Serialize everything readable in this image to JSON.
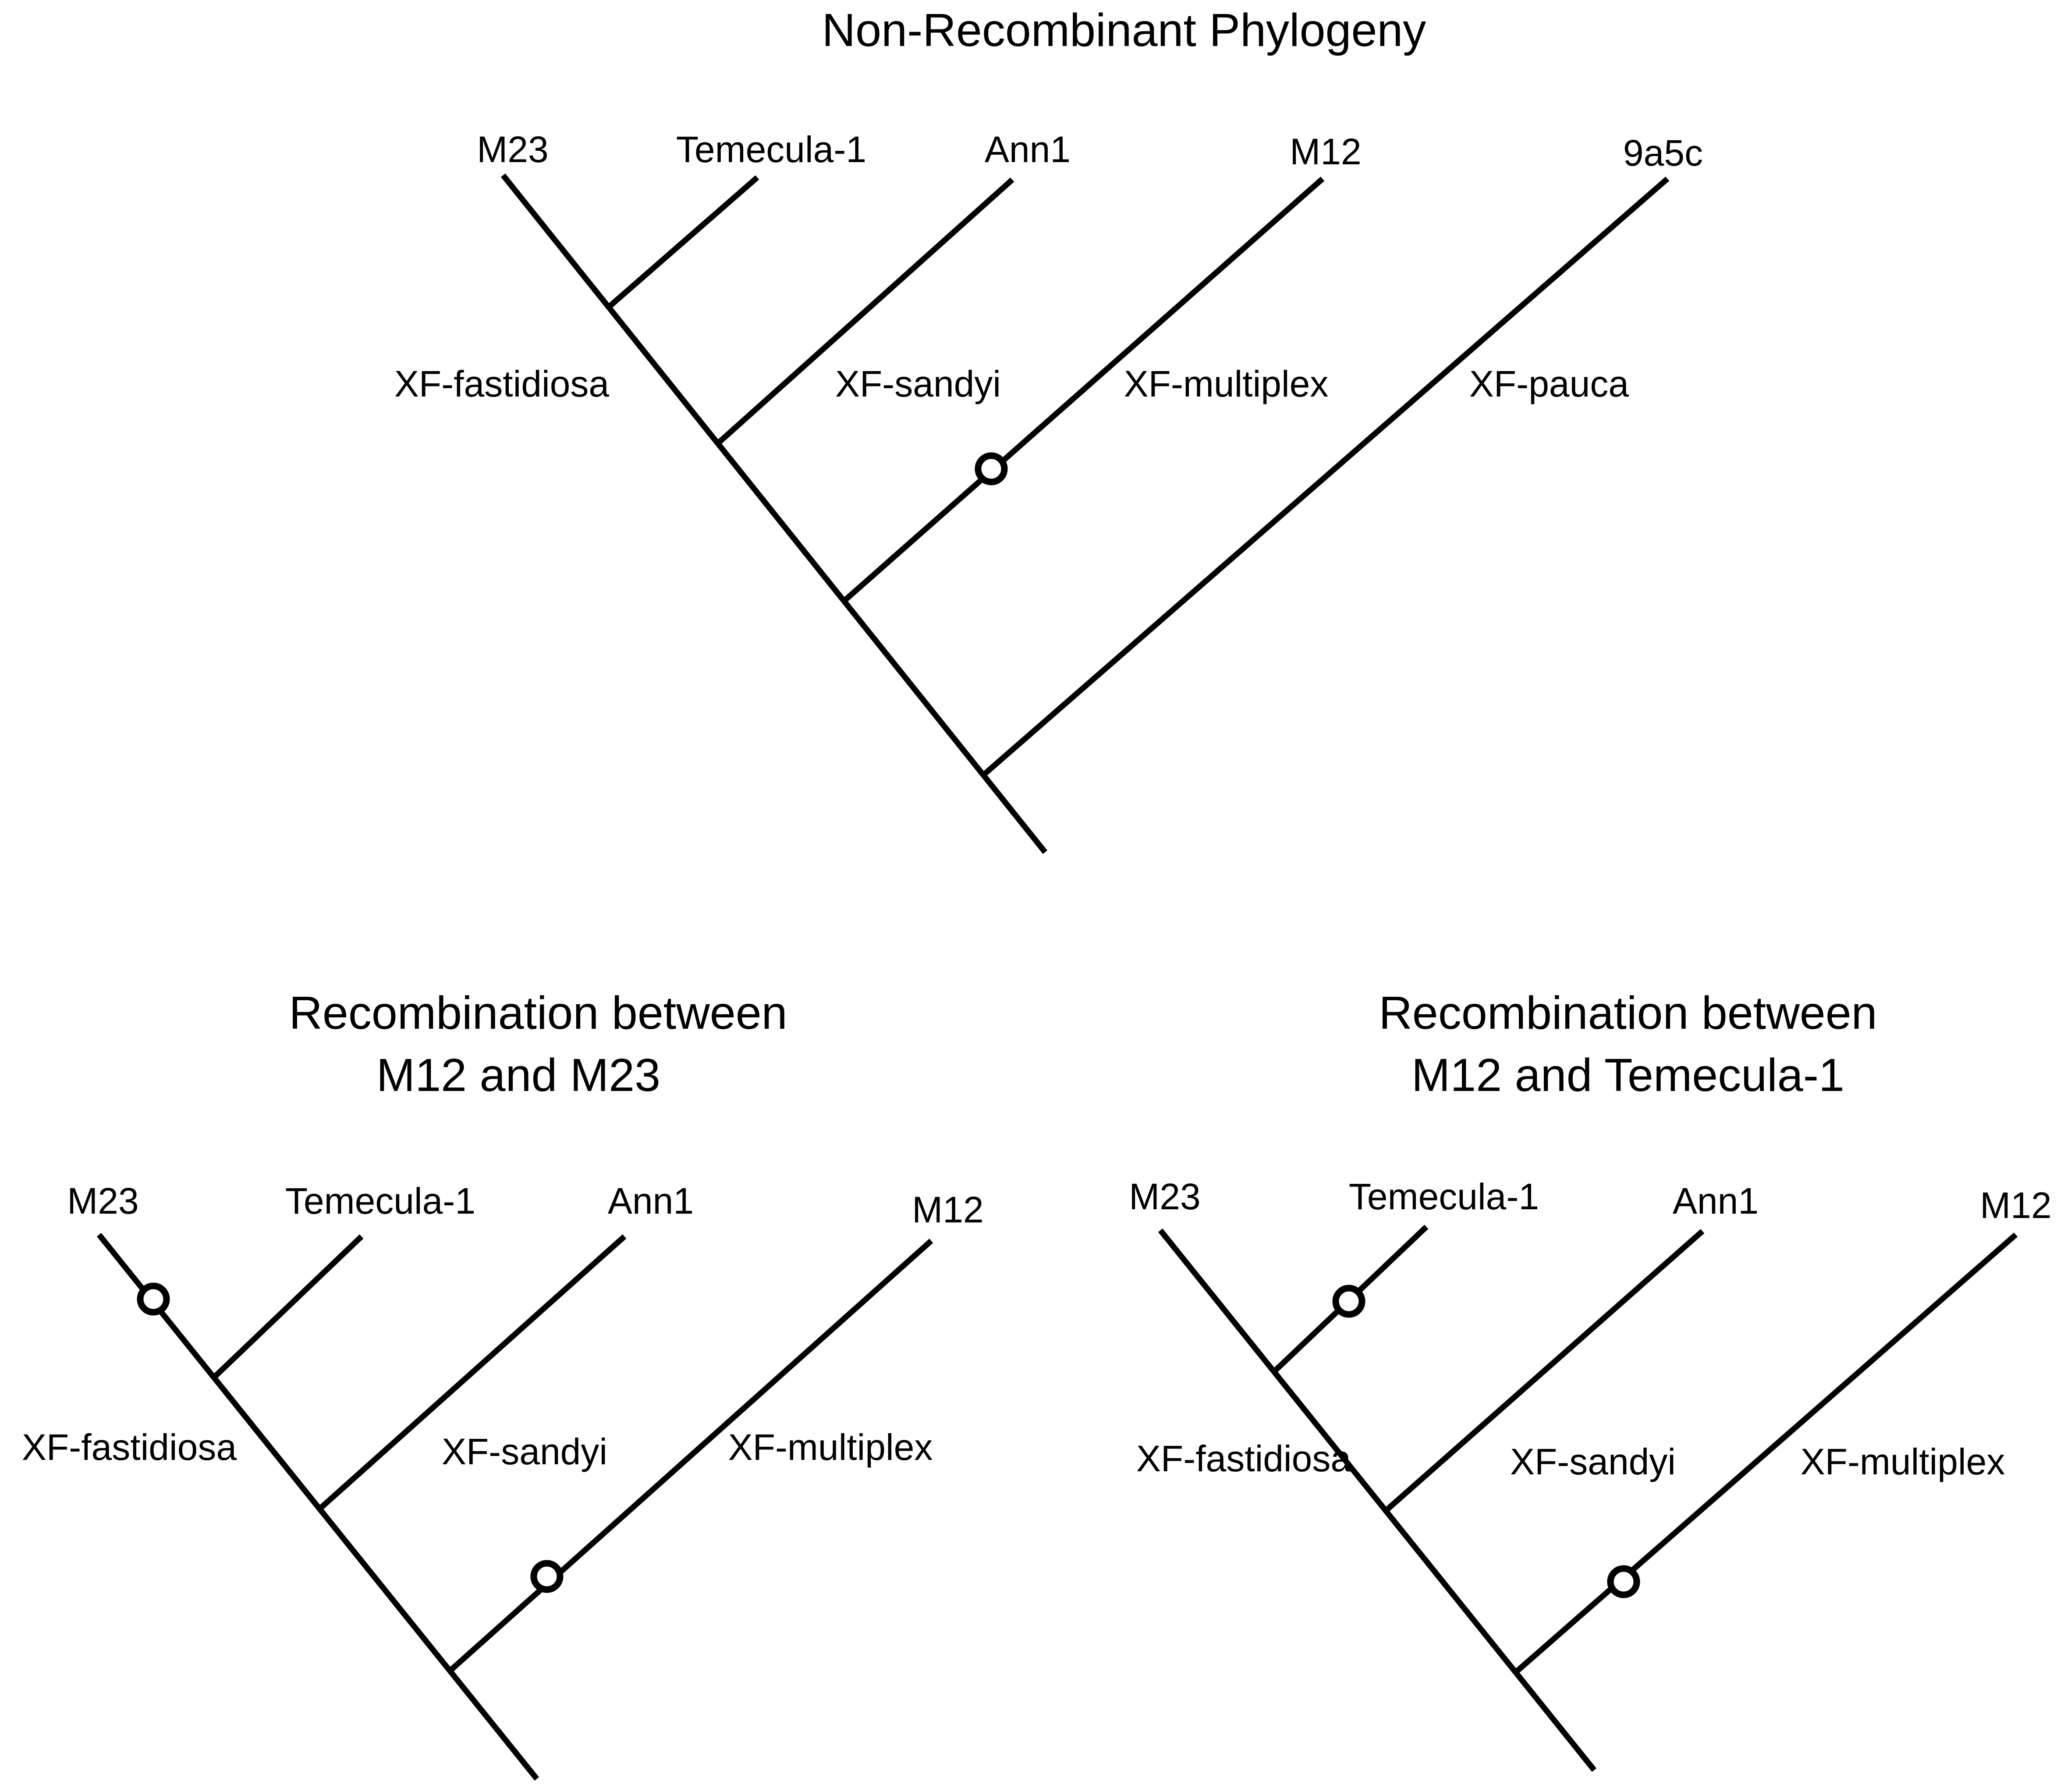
{
  "figure": {
    "trees": [
      {
        "title_lines": [
          "Non-Recombinant Phylogeny"
        ],
        "tips": [
          "M23",
          "Temecula-1",
          "Ann1",
          "M12",
          "9a5c"
        ],
        "clades": [
          "XF-fastidiosa",
          "XF-sandyi",
          "XF-multiplex",
          "XF-pauca"
        ],
        "recombination_markers": [
          "M12"
        ]
      },
      {
        "title_lines": [
          "Recombination between",
          "M12 and M23"
        ],
        "tips": [
          "M23",
          "Temecula-1",
          "Ann1",
          "M12"
        ],
        "clades": [
          "XF-fastidiosa",
          "XF-sandyi",
          "XF-multiplex"
        ],
        "recombination_markers": [
          "M23",
          "M12"
        ]
      },
      {
        "title_lines": [
          "Recombination between",
          "M12 and Temecula-1"
        ],
        "tips": [
          "M23",
          "Temecula-1",
          "Ann1",
          "M12"
        ],
        "clades": [
          "XF-fastidiosa",
          "XF-sandyi",
          "XF-multiplex"
        ],
        "recombination_markers": [
          "Temecula-1",
          "M12"
        ]
      }
    ]
  }
}
